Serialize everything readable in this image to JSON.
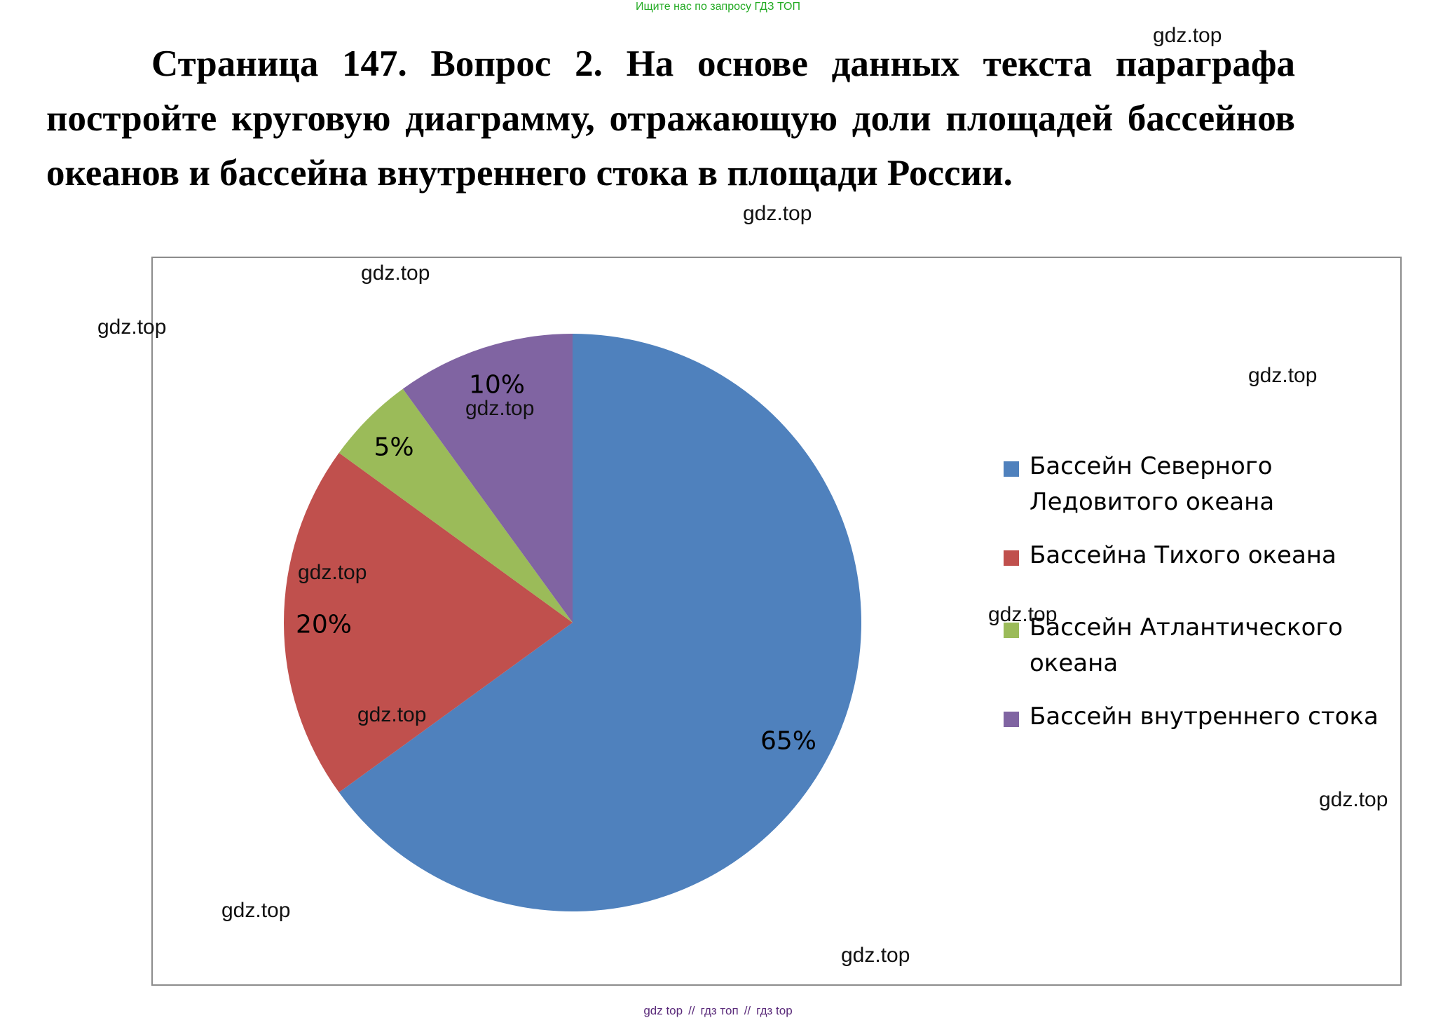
{
  "banner": "Ищите нас по запросу ГДЗ ТОП",
  "heading": "Страница 147. Вопрос 2. На основе данных текста параграфа постройте круговую диаграмму, отражающую доли площадей бассейнов океанов и бассейна внутреннего стока в площади России.",
  "watermark": "gdz.top",
  "footer": {
    "link1": "gdz top",
    "link2": "гдз топ",
    "link3": "гдз top",
    "separator": "//"
  },
  "colors": {
    "arctic": "#4F81BD",
    "pacific": "#C0504D",
    "atlantic": "#9BBB59",
    "internal": "#8064A2"
  },
  "chart_data": {
    "type": "pie",
    "title": "",
    "start_angle_deg": 0,
    "direction": "clockwise",
    "legend_position": "right",
    "slices": [
      {
        "label": "Бассейн Северного Ледовитого океана",
        "value": 65,
        "display": "65%",
        "color": "#4F81BD"
      },
      {
        "label": "Бассейна Тихого океана",
        "value": 20,
        "display": "20%",
        "color": "#C0504D"
      },
      {
        "label": "Бассейн Атлантического океана",
        "value": 5,
        "display": "5%",
        "color": "#9BBB59"
      },
      {
        "label": "Бассейн внутреннего стока",
        "value": 10,
        "display": "10%",
        "color": "#8064A2"
      }
    ]
  }
}
